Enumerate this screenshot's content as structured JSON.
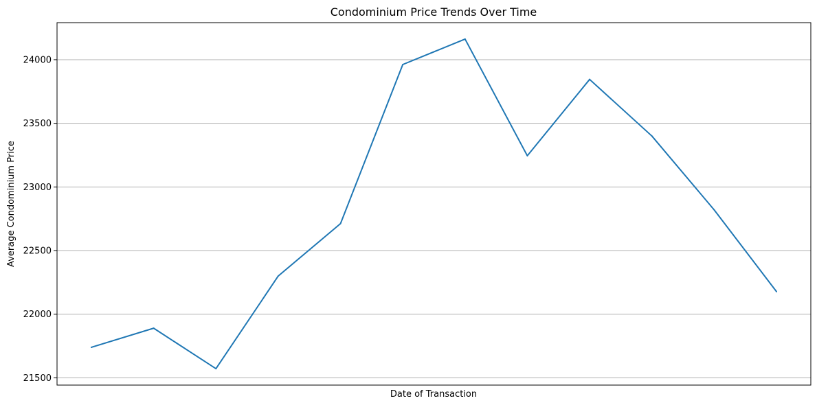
{
  "chart_data": {
    "type": "line",
    "title": "Condominium Price Trends Over Time",
    "xlabel": "Date of Transaction",
    "ylabel": "Average Condominium Price",
    "x": [
      1,
      2,
      3,
      4,
      5,
      6,
      7,
      8,
      9,
      10,
      11,
      12
    ],
    "xticks_shown": false,
    "series": [
      {
        "values": [
          21740,
          21890,
          21572,
          22300,
          22712,
          23962,
          24162,
          23245,
          23845,
          23400,
          22820,
          22178
        ]
      }
    ],
    "yticks": [
      21500,
      22000,
      22500,
      23000,
      23500,
      24000
    ],
    "ytick_labels": [
      "21500",
      "22000",
      "22500",
      "23000",
      "23500",
      "24000"
    ],
    "ylim": [
      21443,
      24291
    ],
    "grid": {
      "y": true,
      "x": false
    },
    "colors": {
      "line": "#1f77b4",
      "grid": "#b0b0b0",
      "axes": "#000000"
    }
  }
}
